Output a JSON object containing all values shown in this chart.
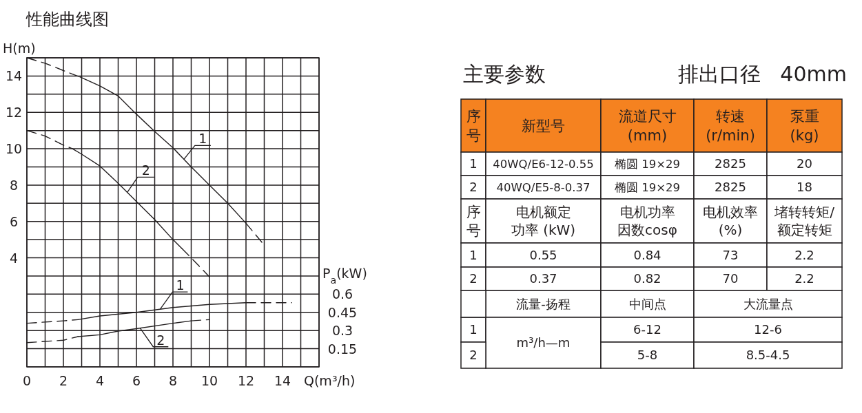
{
  "chart_data": [
    {
      "type": "line",
      "title": "性能曲线图",
      "xlabel": "Q(m³/h)",
      "ylabel": "H(m)",
      "y2label": "P$_{a}$(kW)",
      "grid": true,
      "xlim": [
        0,
        16
      ],
      "ylim": [
        -2,
        15
      ],
      "y2lim": [
        0,
        2.55
      ],
      "xticks": [
        0,
        {
          "value": 1,
          "label": null
        },
        2,
        {
          "value": 3,
          "label": null
        },
        4,
        {
          "value": 5,
          "label": null
        },
        6,
        {
          "value": 7,
          "label": null
        },
        8,
        {
          "value": 9,
          "label": null
        },
        10,
        {
          "value": 11,
          "label": null
        },
        12,
        {
          "value": 13,
          "label": null
        },
        14,
        {
          "value": 15,
          "label": null
        },
        {
          "value": 16,
          "label": null
        }
      ],
      "yticks": [
        {
          "value": -2,
          "label": null
        },
        {
          "value": -1,
          "label": null
        },
        {
          "value": 0,
          "label": null
        },
        {
          "value": 1,
          "label": null
        },
        {
          "value": 2,
          "label": null
        },
        {
          "value": 3,
          "label": null
        },
        4,
        {
          "value": 5,
          "label": null
        },
        6,
        {
          "value": 7,
          "label": null
        },
        8,
        {
          "value": 9,
          "label": null
        },
        10,
        {
          "value": 11,
          "label": null
        },
        12,
        {
          "value": 13,
          "label": null
        },
        14,
        {
          "value": 15,
          "label": null
        }
      ],
      "y2ticks": [
        0.15,
        0.3,
        0.45,
        0.6
      ],
      "series": [
        {
          "color": "#231f20",
          "line_style": "dashed",
          "x": [
            0,
            1,
            2,
            2.9
          ],
          "values": [
            15,
            14.7,
            14.3,
            13.95
          ]
        },
        {
          "name": "1",
          "color": "#231f20",
          "line_style": "solid",
          "x": [
            2.9,
            4,
            5,
            6,
            7,
            8,
            9,
            10,
            11,
            12
          ],
          "values": [
            13.95,
            13.45,
            12.9,
            11.9,
            10.95,
            10.05,
            9,
            8,
            7,
            5.9
          ]
        },
        {
          "color": "#231f20",
          "line_style": "dashed",
          "x": [
            12,
            13
          ],
          "values": [
            5.9,
            4.7
          ]
        },
        {
          "color": "#231f20",
          "line_style": "dashed",
          "x": [
            0,
            1,
            2,
            2.5
          ],
          "values": [
            11,
            10.7,
            10.2,
            10
          ]
        },
        {
          "name": "2",
          "color": "#231f20",
          "line_style": "solid",
          "x": [
            2.5,
            3,
            4,
            5,
            6,
            7,
            8,
            8.5
          ],
          "values": [
            10,
            9.7,
            9.05,
            8.1,
            7.1,
            6.1,
            5,
            4.5
          ]
        },
        {
          "color": "#231f20",
          "line_style": "dashed",
          "x": [
            8.5,
            9,
            10
          ],
          "values": [
            4.5,
            4,
            2.95
          ]
        },
        {
          "color": "#231f20",
          "line_style": "dashed",
          "axis": "y2",
          "x": [
            0,
            2,
            2.8
          ],
          "values": [
            0.36,
            0.38,
            0.39
          ]
        },
        {
          "name": "1",
          "color": "#231f20",
          "line_style": "solid",
          "axis": "y2",
          "x": [
            2.8,
            4,
            6,
            8,
            10,
            12
          ],
          "values": [
            0.39,
            0.42,
            0.45,
            0.49,
            0.515,
            0.53
          ]
        },
        {
          "color": "#231f20",
          "line_style": "dashed",
          "axis": "y2",
          "x": [
            12,
            14.5
          ],
          "values": [
            0.53,
            0.53
          ]
        },
        {
          "color": "#231f20",
          "line_style": "dashed",
          "axis": "y2",
          "x": [
            0,
            2,
            2.8
          ],
          "values": [
            0.2,
            0.22,
            0.25
          ]
        },
        {
          "name": "2",
          "color": "#231f20",
          "line_style": "solid",
          "axis": "y2",
          "x": [
            2.8,
            4,
            5,
            6,
            8,
            9
          ],
          "values": [
            0.25,
            0.265,
            0.295,
            0.315,
            0.36,
            0.38
          ]
        },
        {
          "color": "#231f20",
          "line_style": "dashed",
          "axis": "y2",
          "x": [
            9,
            10
          ],
          "values": [
            0.38,
            0.39
          ]
        }
      ]
    },
    {
      "type": "other",
      "title": "主要参数",
      "subtitle": "排出口径   40mm",
      "color": "#f58220",
      "annotations": [
        "序号",
        "新型号",
        "流道尺寸\n(mm)",
        "转速\n(r/min)",
        "泵重\n(kg)",
        "1",
        "40WQ/E6-12-0.55",
        "椭圆 19×29",
        "2825",
        "20",
        "2",
        "40WQ/E5-8-0.37",
        "椭圆 19×29",
        "2825",
        "18",
        "序号",
        "电机额定功率 (kW)",
        "电机功率因数cosφ",
        "电机效率\n(%)",
        "堵转转矩/\n额定转矩",
        "1",
        "0.55",
        "0.84",
        "73",
        "2.2",
        "2",
        "0.37",
        "0.82",
        "70",
        "2.2",
        "流量-扬程",
        "中间点",
        "大流量点",
        "1",
        "m³/h—m",
        "6-12",
        "12-6",
        "2",
        "5-8",
        "8.5-4.5"
      ]
    }
  ]
}
